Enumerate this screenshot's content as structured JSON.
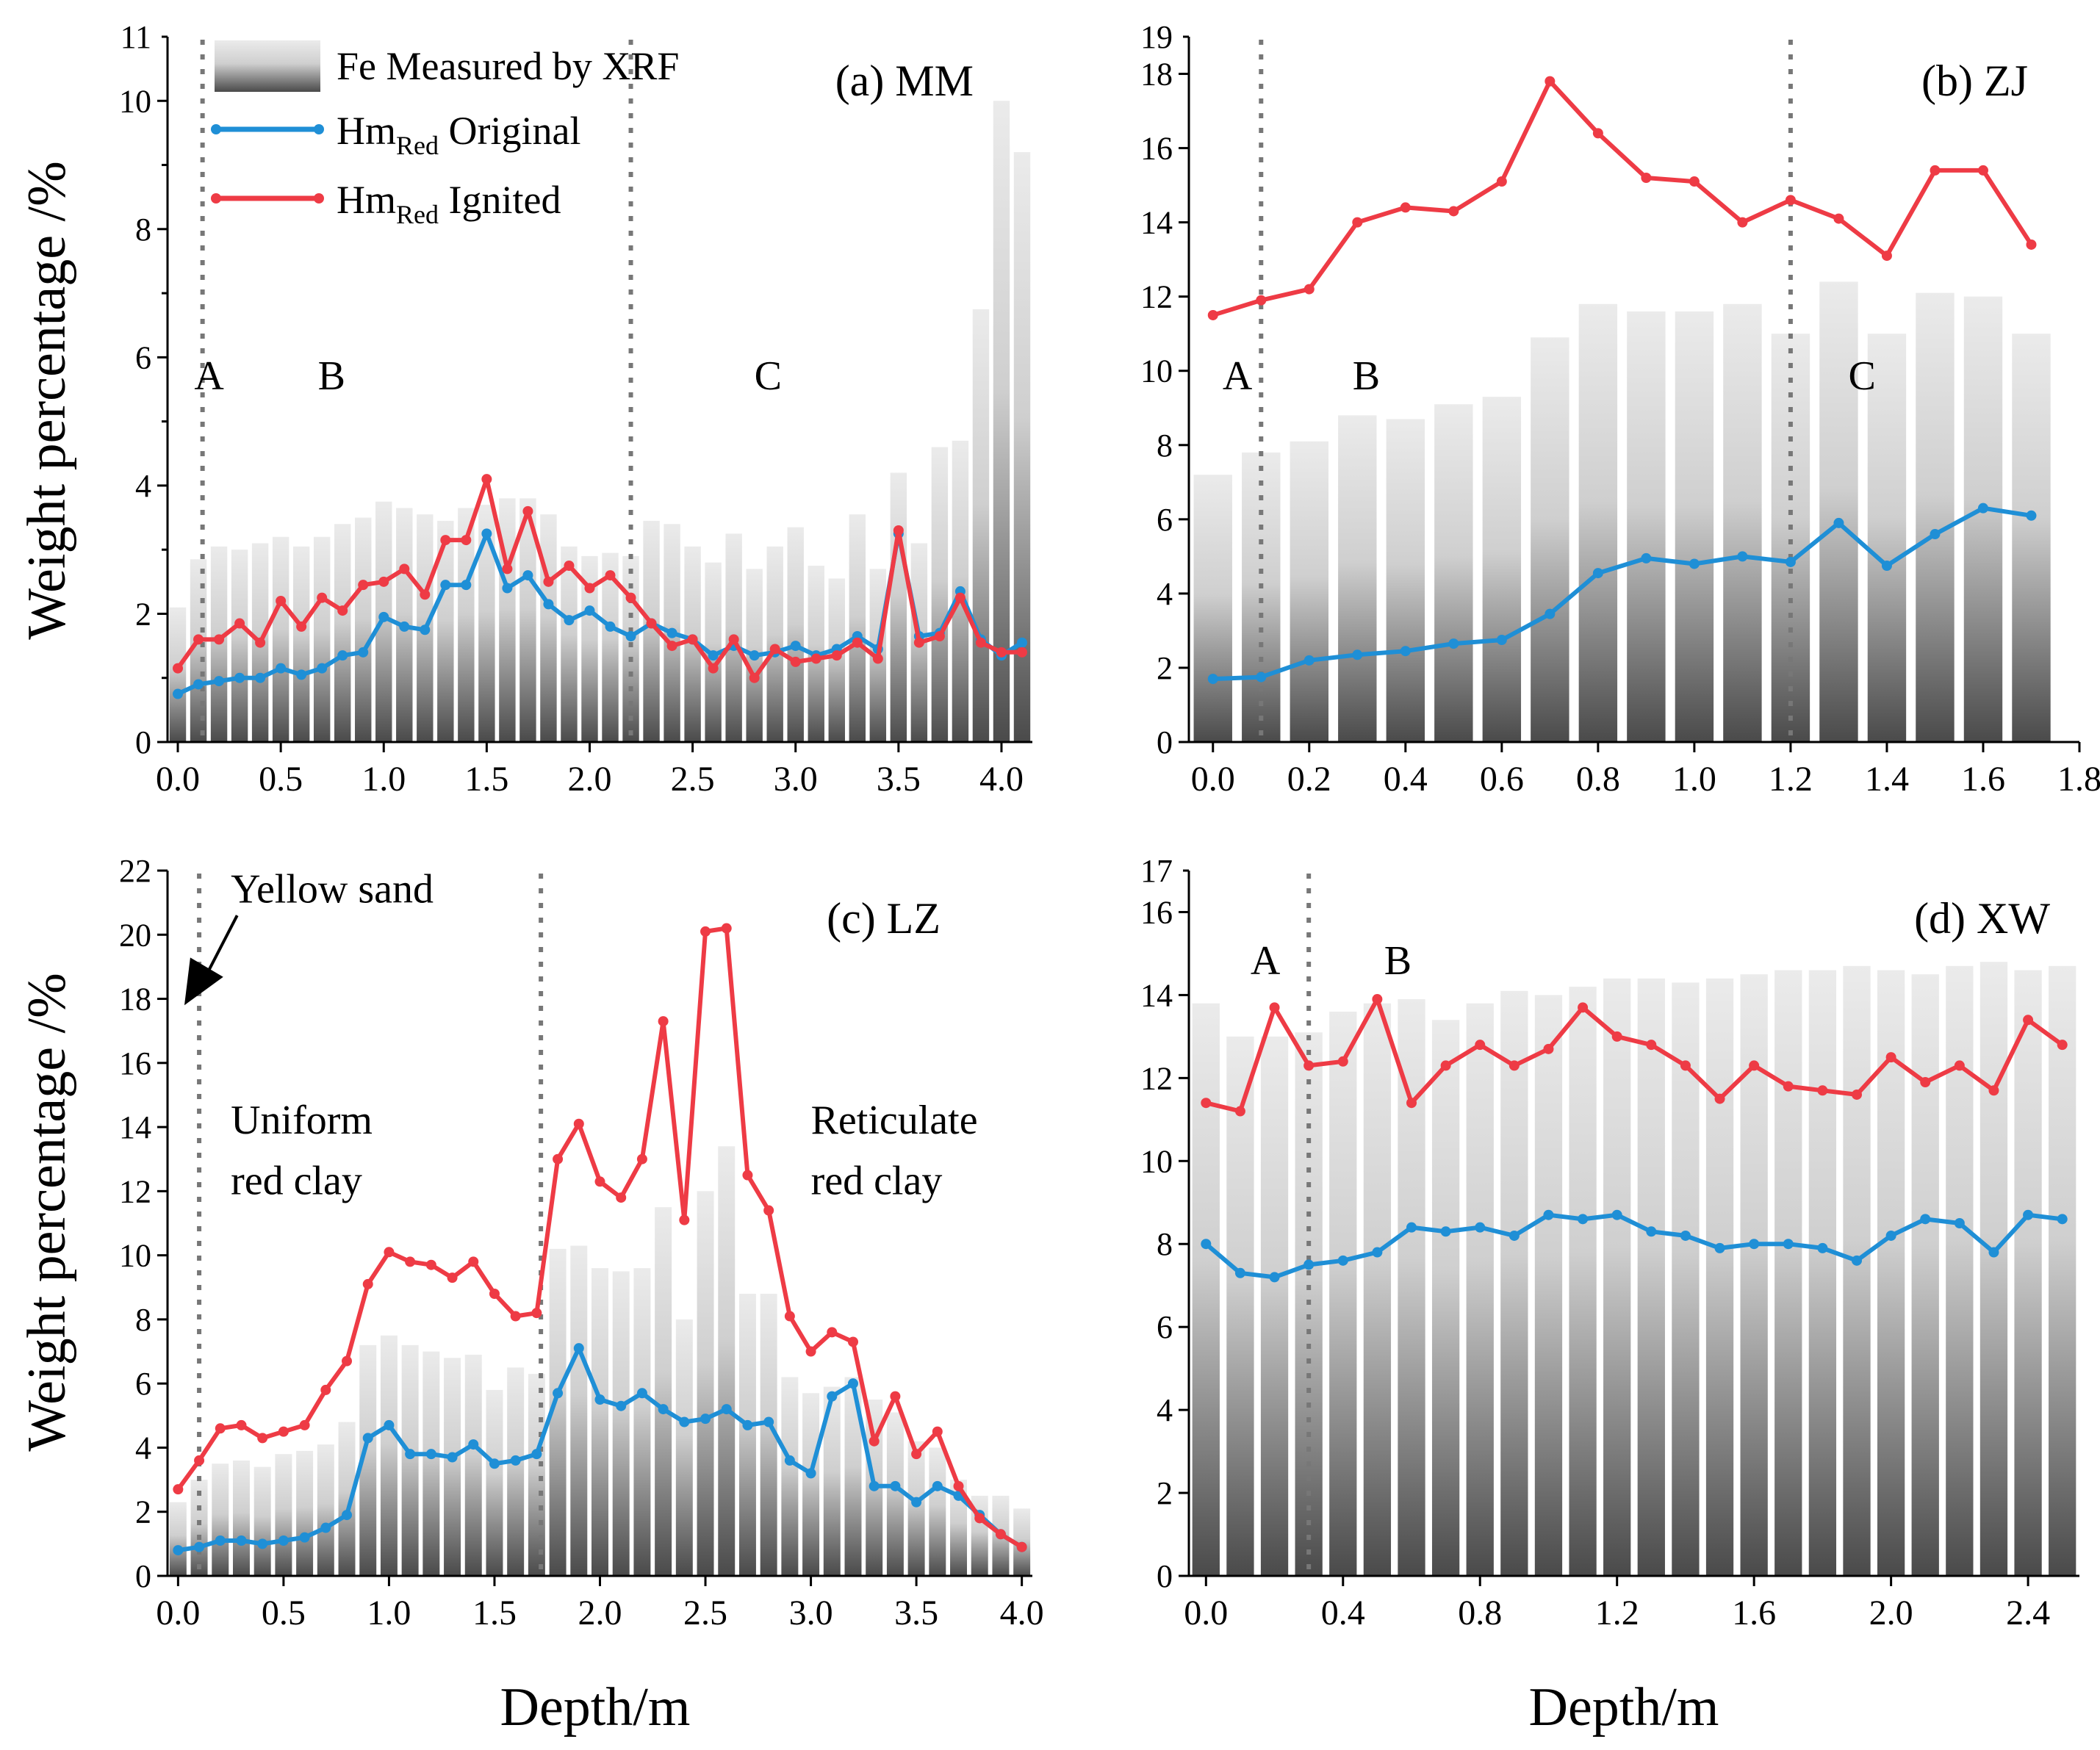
{
  "figure": {
    "ylabel": "Weight percentage /%",
    "xlabel": "Depth/m",
    "legend": {
      "fe_label": "Fe Measured by XRF",
      "original_prefix": "Hm",
      "original_sub": "Red",
      "original_suffix": " Original",
      "ignited_prefix": "Hm",
      "ignited_sub": "Red",
      "ignited_suffix": " Ignited"
    },
    "colors": {
      "original": "#1f8fd6",
      "ignited": "#ee3b45",
      "divider": "#777777"
    }
  },
  "chart_data": [
    {
      "id": "a",
      "type": "bar",
      "title": "(a) MM",
      "xlabel": "Depth/m",
      "ylabel": "Weight percentage /%",
      "xlim": [
        -0.05,
        4.15
      ],
      "ylim": [
        0,
        11
      ],
      "xticks": [
        0,
        0.5,
        1.0,
        1.5,
        2.0,
        2.5,
        3.0,
        3.5,
        4.0
      ],
      "xtick_labels": [
        "0.0",
        "0.5",
        "1.0",
        "1.5",
        "2.0",
        "2.5",
        "3.0",
        "3.5",
        "4.0"
      ],
      "yticks": [
        0,
        2,
        4,
        6,
        8,
        10
      ],
      "yticks_minor": [
        1,
        3,
        5,
        7,
        9,
        11
      ],
      "ytick_labels": [
        "0",
        "2",
        "4",
        "6",
        "8",
        "10"
      ],
      "ytick_minor_labels": [
        "11"
      ],
      "bar_width": 0.08,
      "dividers": [
        0.12,
        2.2
      ],
      "zone_labels": [
        {
          "text": "A",
          "x": 0.08,
          "y": 5.5
        },
        {
          "text": "B",
          "x": 0.68,
          "y": 5.5
        },
        {
          "text": "C",
          "x": 2.8,
          "y": 5.5
        }
      ],
      "x": [
        0,
        0.1,
        0.2,
        0.3,
        0.4,
        0.5,
        0.6,
        0.7,
        0.8,
        0.9,
        1.0,
        1.1,
        1.2,
        1.3,
        1.4,
        1.5,
        1.6,
        1.7,
        1.8,
        1.9,
        2.0,
        2.1,
        2.2,
        2.3,
        2.4,
        2.5,
        2.6,
        2.7,
        2.8,
        2.9,
        3.0,
        3.1,
        3.2,
        3.3,
        3.4,
        3.5,
        3.6,
        3.7,
        3.8,
        3.9,
        4.0,
        4.1
      ],
      "series": [
        {
          "name": "Fe Measured by XRF",
          "values": [
            2.1,
            2.85,
            3.05,
            3.0,
            3.1,
            3.2,
            3.05,
            3.2,
            3.4,
            3.5,
            3.75,
            3.65,
            3.55,
            3.45,
            3.65,
            3.7,
            3.8,
            3.8,
            3.55,
            3.05,
            2.9,
            2.95,
            2.9,
            3.45,
            3.4,
            3.05,
            2.8,
            3.25,
            2.7,
            3.05,
            3.35,
            2.75,
            2.55,
            3.55,
            2.7,
            4.2,
            3.1,
            4.6,
            4.7,
            6.75,
            10.0,
            9.2
          ]
        },
        {
          "name": "HmRed Original",
          "values": [
            0.75,
            0.9,
            0.95,
            1.0,
            1.0,
            1.15,
            1.05,
            1.15,
            1.35,
            1.4,
            1.95,
            1.8,
            1.75,
            2.45,
            2.45,
            3.25,
            2.4,
            2.6,
            2.15,
            1.9,
            2.05,
            1.8,
            1.65,
            1.85,
            1.7,
            1.6,
            1.35,
            1.5,
            1.35,
            1.4,
            1.5,
            1.35,
            1.45,
            1.65,
            1.45,
            3.25,
            1.65,
            1.7,
            2.35,
            1.6,
            1.35,
            1.55
          ]
        },
        {
          "name": "HmRed Ignited",
          "values": [
            1.15,
            1.6,
            1.6,
            1.85,
            1.55,
            2.2,
            1.8,
            2.25,
            2.05,
            2.45,
            2.5,
            2.7,
            2.3,
            3.15,
            3.15,
            4.1,
            2.7,
            3.6,
            2.5,
            2.75,
            2.4,
            2.6,
            2.25,
            1.85,
            1.5,
            1.6,
            1.15,
            1.6,
            1.0,
            1.45,
            1.25,
            1.3,
            1.35,
            1.55,
            1.3,
            3.3,
            1.55,
            1.65,
            2.25,
            1.55,
            1.4,
            1.4
          ]
        }
      ]
    },
    {
      "id": "b",
      "type": "bar",
      "title": "(b) ZJ",
      "xlabel": "Depth/m",
      "ylabel": "Weight percentage /%",
      "xlim": [
        -0.05,
        1.8
      ],
      "ylim": [
        0,
        19
      ],
      "xticks": [
        0,
        0.2,
        0.4,
        0.6,
        0.8,
        1.0,
        1.2,
        1.4,
        1.6,
        1.8
      ],
      "xtick_labels": [
        "0.0",
        "0.2",
        "0.4",
        "0.6",
        "0.8",
        "1.0",
        "1.2",
        "1.4",
        "1.6",
        "1.8"
      ],
      "yticks": [
        0,
        2,
        4,
        6,
        8,
        10,
        12,
        14,
        16,
        18
      ],
      "yticks_minor": [
        19
      ],
      "ytick_labels": [
        "0",
        "2",
        "4",
        "6",
        "8",
        "10",
        "12",
        "14",
        "16",
        "18"
      ],
      "ytick_minor_labels": [
        "19"
      ],
      "bar_width": 0.08,
      "dividers": [
        0.1,
        1.2
      ],
      "zone_labels": [
        {
          "text": "A",
          "x": 0.02,
          "y": 9.5
        },
        {
          "text": "B",
          "x": 0.29,
          "y": 9.5
        },
        {
          "text": "C",
          "x": 1.32,
          "y": 9.5
        }
      ],
      "x": [
        0,
        0.1,
        0.2,
        0.3,
        0.4,
        0.5,
        0.6,
        0.7,
        0.8,
        0.9,
        1.0,
        1.1,
        1.2,
        1.3,
        1.4,
        1.5,
        1.6,
        1.7
      ],
      "series": [
        {
          "name": "Fe Measured by XRF",
          "values": [
            7.2,
            7.8,
            8.1,
            8.8,
            8.7,
            9.1,
            9.3,
            10.9,
            11.8,
            11.6,
            11.6,
            11.8,
            11.0,
            12.4,
            11.0,
            12.1,
            12.0,
            11.0
          ]
        },
        {
          "name": "HmRed Original",
          "values": [
            1.7,
            1.75,
            2.2,
            2.35,
            2.45,
            2.65,
            2.75,
            3.45,
            4.55,
            4.95,
            4.8,
            5.0,
            4.85,
            5.9,
            4.75,
            5.6,
            6.3,
            6.1
          ]
        },
        {
          "name": "HmRed Ignited",
          "values": [
            11.5,
            11.9,
            12.2,
            14.0,
            14.4,
            14.3,
            15.1,
            17.8,
            16.4,
            15.2,
            15.1,
            14.0,
            14.6,
            14.1,
            13.1,
            15.4,
            15.4,
            13.4
          ]
        }
      ]
    },
    {
      "id": "c",
      "type": "bar",
      "title": "(c) LZ",
      "xlabel": "Depth/m",
      "ylabel": "Weight percentage /%",
      "xlim": [
        -0.05,
        4.05
      ],
      "ylim": [
        0,
        22
      ],
      "xticks": [
        0,
        0.5,
        1.0,
        1.5,
        2.0,
        2.5,
        3.0,
        3.5,
        4.0
      ],
      "xtick_labels": [
        "0.0",
        "0.5",
        "1.0",
        "1.5",
        "2.0",
        "2.5",
        "3.0",
        "3.5",
        "4.0"
      ],
      "yticks": [
        0,
        2,
        4,
        6,
        8,
        10,
        12,
        14,
        16,
        18,
        20,
        22
      ],
      "yticks_minor": [],
      "ytick_labels": [
        "0",
        "2",
        "4",
        "6",
        "8",
        "10",
        "12",
        "14",
        "16",
        "18",
        "20",
        "22"
      ],
      "ytick_minor_labels": [],
      "bar_width": 0.08,
      "dividers": [
        0.1,
        1.72
      ],
      "zone_labels": [
        {
          "text": "Yellow sand",
          "x": 0.25,
          "y": 21.0
        },
        {
          "text": "Uniform",
          "x": 0.25,
          "y": 13.8
        },
        {
          "text": "red clay",
          "x": 0.25,
          "y": 11.9
        },
        {
          "text": "Reticulate",
          "x": 3.0,
          "y": 13.8
        },
        {
          "text": "red clay",
          "x": 3.0,
          "y": 11.9
        }
      ],
      "arrow": {
        "from": [
          0.28,
          20.6
        ],
        "to": [
          0.03,
          17.8
        ]
      },
      "x": [
        0,
        0.1,
        0.2,
        0.3,
        0.4,
        0.5,
        0.6,
        0.7,
        0.8,
        0.9,
        1.0,
        1.1,
        1.2,
        1.3,
        1.4,
        1.5,
        1.6,
        1.7,
        1.8,
        1.9,
        2.0,
        2.1,
        2.2,
        2.3,
        2.4,
        2.5,
        2.6,
        2.7,
        2.8,
        2.9,
        3.0,
        3.1,
        3.2,
        3.3,
        3.4,
        3.5,
        3.6,
        3.7,
        3.8,
        3.9,
        4.0
      ],
      "series": [
        {
          "name": "Fe Measured by XRF",
          "values": [
            2.3,
            3.0,
            3.5,
            3.6,
            3.4,
            3.8,
            3.9,
            4.1,
            4.8,
            7.2,
            7.5,
            7.2,
            7.0,
            6.8,
            6.9,
            5.8,
            6.5,
            6.3,
            10.2,
            10.3,
            9.6,
            9.5,
            9.6,
            11.5,
            8.0,
            12.0,
            13.4,
            8.8,
            8.8,
            6.2,
            5.7,
            5.9,
            6.2,
            5.5,
            5.1,
            4.2,
            4.0,
            3.0,
            2.5,
            2.5,
            2.1
          ]
        },
        {
          "name": "HmRed Original",
          "values": [
            0.8,
            0.9,
            1.1,
            1.1,
            1.0,
            1.1,
            1.2,
            1.5,
            1.9,
            4.3,
            4.7,
            3.8,
            3.8,
            3.7,
            4.1,
            3.5,
            3.6,
            3.8,
            5.7,
            7.1,
            5.5,
            5.3,
            5.7,
            5.2,
            4.8,
            4.9,
            5.2,
            4.7,
            4.8,
            3.6,
            3.2,
            5.6,
            6.0,
            2.8,
            2.8,
            2.3,
            2.8,
            2.5,
            1.9,
            1.3,
            0.9
          ]
        },
        {
          "name": "HmRed Ignited",
          "values": [
            2.7,
            3.6,
            4.6,
            4.7,
            4.3,
            4.5,
            4.7,
            5.8,
            6.7,
            9.1,
            10.1,
            9.8,
            9.7,
            9.3,
            9.8,
            8.8,
            8.1,
            8.2,
            13.0,
            14.1,
            12.3,
            11.8,
            13.0,
            17.3,
            11.1,
            20.1,
            20.2,
            12.5,
            11.4,
            8.1,
            7.0,
            7.6,
            7.3,
            4.2,
            5.6,
            3.8,
            4.5,
            2.8,
            1.8,
            1.3,
            0.9
          ]
        }
      ]
    },
    {
      "id": "d",
      "type": "bar",
      "title": "(d) XW",
      "xlabel": "Depth/m",
      "ylabel": "Weight percentage /%",
      "xlim": [
        -0.05,
        2.55
      ],
      "ylim": [
        0,
        17
      ],
      "xticks": [
        0,
        0.4,
        0.8,
        1.2,
        1.6,
        2.0,
        2.4
      ],
      "xtick_labels": [
        "0.0",
        "0.4",
        "0.8",
        "1.2",
        "1.6",
        "2.0",
        "2.4"
      ],
      "yticks": [
        0,
        2,
        4,
        6,
        8,
        10,
        12,
        14,
        16
      ],
      "yticks_minor": [
        17
      ],
      "ytick_labels": [
        "0",
        "2",
        "4",
        "6",
        "8",
        "10",
        "12",
        "14",
        "16"
      ],
      "ytick_minor_labels": [
        "17"
      ],
      "bar_width": 0.08,
      "dividers": [
        0.3
      ],
      "zone_labels": [
        {
          "text": "A",
          "x": 0.13,
          "y": 14.5
        },
        {
          "text": "B",
          "x": 0.52,
          "y": 14.5
        }
      ],
      "x": [
        0,
        0.1,
        0.2,
        0.3,
        0.4,
        0.5,
        0.6,
        0.7,
        0.8,
        0.9,
        1.0,
        1.1,
        1.2,
        1.3,
        1.4,
        1.5,
        1.6,
        1.7,
        1.8,
        1.9,
        2.0,
        2.1,
        2.2,
        2.3,
        2.4,
        2.5
      ],
      "series": [
        {
          "name": "Fe Measured by XRF",
          "values": [
            13.8,
            13.0,
            13.0,
            13.1,
            13.6,
            13.8,
            13.9,
            13.4,
            13.8,
            14.1,
            14.0,
            14.2,
            14.4,
            14.4,
            14.3,
            14.4,
            14.5,
            14.6,
            14.6,
            14.7,
            14.6,
            14.5,
            14.7,
            14.8,
            14.6,
            14.7
          ]
        },
        {
          "name": "HmRed Original",
          "values": [
            8.0,
            7.3,
            7.2,
            7.5,
            7.6,
            7.8,
            8.4,
            8.3,
            8.4,
            8.2,
            8.7,
            8.6,
            8.7,
            8.3,
            8.2,
            7.9,
            8.0,
            8.0,
            7.9,
            7.6,
            8.2,
            8.6,
            8.5,
            7.8,
            8.7,
            8.6
          ]
        },
        {
          "name": "HmRed Ignited",
          "values": [
            11.4,
            11.2,
            13.7,
            12.3,
            12.4,
            13.9,
            11.4,
            12.3,
            12.8,
            12.3,
            12.7,
            13.7,
            13.0,
            12.8,
            12.3,
            11.5,
            12.3,
            11.8,
            11.7,
            11.6,
            12.5,
            11.9,
            12.3,
            11.7,
            13.4,
            12.8
          ]
        }
      ]
    }
  ]
}
